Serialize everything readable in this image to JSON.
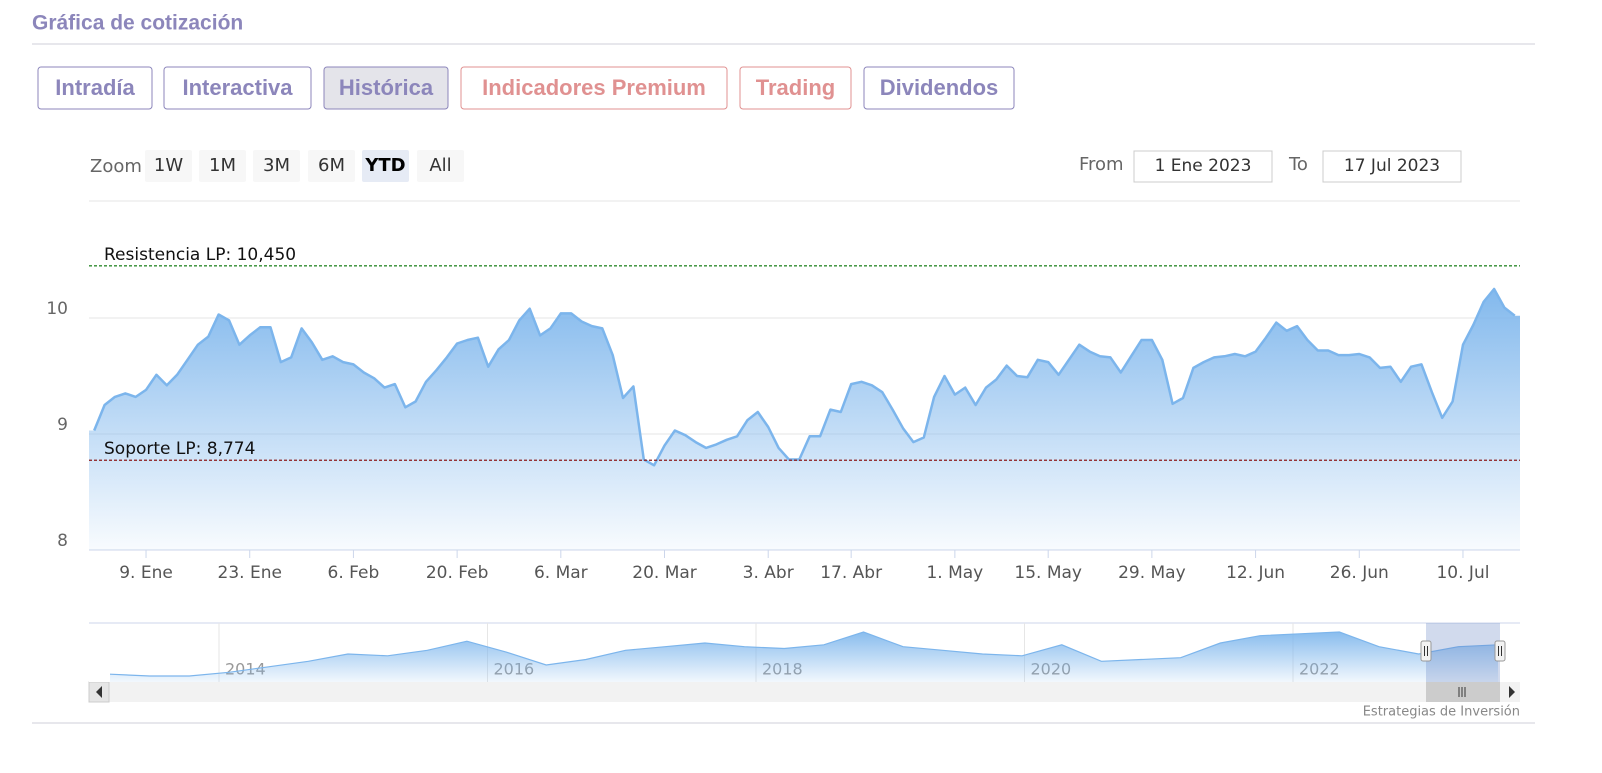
{
  "header": {
    "title": "Gráfica de cotización"
  },
  "tabs": [
    {
      "label": "Intradía",
      "color": "#8c86bb"
    },
    {
      "label": "Interactiva",
      "color": "#8c86bb"
    },
    {
      "label": "Histórica",
      "color": "#8c86bb"
    },
    {
      "label": "Indicadores Premium",
      "color": "#e09191"
    },
    {
      "label": "Trading",
      "color": "#e09191"
    },
    {
      "label": "Dividendos",
      "color": "#8c86bb"
    }
  ],
  "active_tab": 2,
  "zoom": {
    "label": "Zoom",
    "buttons": [
      "1W",
      "1M",
      "3M",
      "6M",
      "YTD",
      "All"
    ],
    "active": 4
  },
  "range": {
    "from_label": "From",
    "from": "1 Ene 2023",
    "to_label": "To",
    "to": "17 Jul 2023"
  },
  "chart_data": {
    "type": "area",
    "color": "#7cb5ec",
    "categories": [
      null,
      null,
      null,
      null,
      null,
      "9. Ene",
      null,
      null,
      null,
      null,
      null,
      null,
      null,
      null,
      null,
      "23. Ene",
      null,
      null,
      null,
      null,
      null,
      null,
      null,
      null,
      null,
      "6. Feb",
      null,
      null,
      null,
      null,
      null,
      null,
      null,
      null,
      null,
      "20. Feb",
      null,
      null,
      null,
      null,
      null,
      null,
      null,
      null,
      null,
      "6. Mar",
      null,
      null,
      null,
      null,
      null,
      null,
      null,
      null,
      null,
      "20. Mar",
      null,
      null,
      null,
      null,
      null,
      null,
      null,
      null,
      null,
      "3. Abr",
      null,
      null,
      null,
      null,
      null,
      null,
      null,
      "17. Abr",
      null,
      null,
      null,
      null,
      null,
      null,
      null,
      null,
      null,
      "1. May",
      null,
      null,
      null,
      null,
      null,
      null,
      null,
      null,
      "15. May",
      null,
      null,
      null,
      null,
      null,
      null,
      null,
      null,
      null,
      "29. May",
      null,
      null,
      null,
      null,
      null,
      null,
      null,
      null,
      null,
      "12. Jun",
      null,
      null,
      null,
      null,
      null,
      null,
      null,
      null,
      null,
      "26. Jun",
      null,
      null,
      null,
      null,
      null,
      null,
      null,
      null,
      null,
      "10. Jul",
      null,
      null,
      null,
      null,
      null
    ],
    "values": [
      9.03,
      9.25,
      9.32,
      9.35,
      9.32,
      9.38,
      9.51,
      9.42,
      9.51,
      9.64,
      9.77,
      9.84,
      10.03,
      9.98,
      9.77,
      9.85,
      9.92,
      9.92,
      9.62,
      9.66,
      9.91,
      9.79,
      9.64,
      9.67,
      9.62,
      9.6,
      9.53,
      9.48,
      9.4,
      9.43,
      9.23,
      9.28,
      9.45,
      9.55,
      9.66,
      9.78,
      9.81,
      9.83,
      9.58,
      9.73,
      9.81,
      9.98,
      10.08,
      9.85,
      9.91,
      10.04,
      10.04,
      9.97,
      9.93,
      9.91,
      9.68,
      9.31,
      9.41,
      8.78,
      8.73,
      8.9,
      9.03,
      8.99,
      8.93,
      8.88,
      8.91,
      8.95,
      8.98,
      9.12,
      9.19,
      9.06,
      8.88,
      8.78,
      8.78,
      8.98,
      8.98,
      9.21,
      9.19,
      9.43,
      9.45,
      9.42,
      9.36,
      9.21,
      9.05,
      8.93,
      8.97,
      9.32,
      9.5,
      9.34,
      9.4,
      9.25,
      9.4,
      9.47,
      9.59,
      9.5,
      9.49,
      9.64,
      9.62,
      9.51,
      9.64,
      9.77,
      9.71,
      9.67,
      9.66,
      9.53,
      9.67,
      9.81,
      9.81,
      9.64,
      9.26,
      9.31,
      9.57,
      9.62,
      9.66,
      9.67,
      9.69,
      9.67,
      9.71,
      9.83,
      9.96,
      9.89,
      9.93,
      9.81,
      9.72,
      9.72,
      9.68,
      9.68,
      9.69,
      9.66,
      9.57,
      9.58,
      9.45,
      9.58,
      9.6,
      9.36,
      9.14,
      9.28,
      9.77,
      9.94,
      10.14,
      10.25,
      10.09,
      10.02
    ],
    "ylim": [
      8,
      11
    ],
    "yticks": [
      8,
      9,
      10
    ],
    "grid": true,
    "plot_lines": [
      {
        "label": "Resistencia LP: 10,450",
        "value": 10.45,
        "color": "#2e8b2e"
      },
      {
        "label": "Soporte LP: 8,774",
        "value": 8.774,
        "color": "#8b1a1a"
      }
    ]
  },
  "navigator": {
    "x_labels": [
      "2014",
      "2016",
      "2018",
      "2020",
      "2022"
    ],
    "values": [
      7.1,
      7.0,
      7.0,
      7.2,
      7.5,
      7.8,
      8.2,
      8.1,
      8.4,
      8.9,
      8.3,
      7.6,
      7.9,
      8.4,
      8.6,
      8.8,
      8.6,
      8.5,
      8.7,
      9.4,
      8.6,
      8.4,
      8.2,
      8.1,
      8.7,
      7.8,
      7.9,
      8.0,
      8.8,
      9.2,
      9.3,
      9.4,
      8.6,
      8.2,
      8.6,
      8.7
    ]
  },
  "credit": "Estrategias de Inversión"
}
